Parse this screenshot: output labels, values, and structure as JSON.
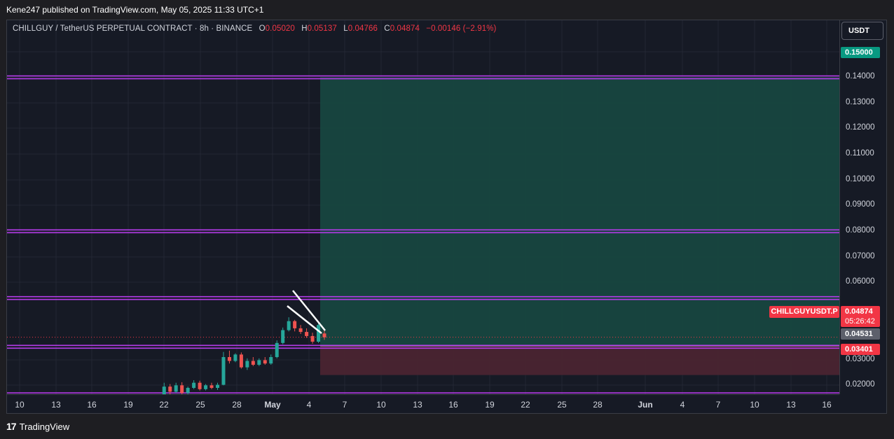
{
  "header": {
    "published": "Kene247 published on TradingView.com, May 05, 2025 11:33 UTC+1"
  },
  "legend": {
    "symbol": "CHILLGUY / TetherUS PERPETUAL CONTRACT · 8h · BINANCE",
    "o_key": "O",
    "o": "0.05020",
    "h_key": "H",
    "h": "0.05137",
    "l_key": "L",
    "l": "0.04766",
    "c_key": "C",
    "c": "0.04874",
    "change": "−0.00146 (−2.91%)"
  },
  "currency": "USDT",
  "y_ticks": [
    "0.15000",
    "0.14000",
    "0.13000",
    "0.12000",
    "0.11000",
    "0.10000",
    "0.09000",
    "0.08000",
    "0.07000",
    "0.06000",
    "0.03000",
    "0.02000"
  ],
  "x_ticks": [
    "10",
    "13",
    "16",
    "19",
    "22",
    "25",
    "28",
    "May",
    "4",
    "7",
    "10",
    "13",
    "16",
    "19",
    "22",
    "25",
    "28",
    "Jun",
    "4",
    "7",
    "10",
    "13",
    "16"
  ],
  "price_labels": {
    "target": "0.15000",
    "symbol": "CHILLGUYUSDT.P",
    "last": "0.04874",
    "countdown": "05:26:42",
    "entry": "0.04531",
    "stop": "0.03401"
  },
  "colors": {
    "background": "#161a25",
    "resistance_line": "#b43be8",
    "profit_zone": "#17463f",
    "loss_zone": "#4a2430",
    "up_candle": "#26a69a",
    "down_candle": "#ef5350",
    "sell_accent": "#f23645"
  },
  "horizontal_levels": [
    0.15,
    0.09,
    0.064,
    0.045,
    0.0265
  ],
  "position_tool": {
    "target": 0.15,
    "entry": 0.04531,
    "stop": 0.03401
  },
  "footer": {
    "brand": "TradingView"
  }
}
